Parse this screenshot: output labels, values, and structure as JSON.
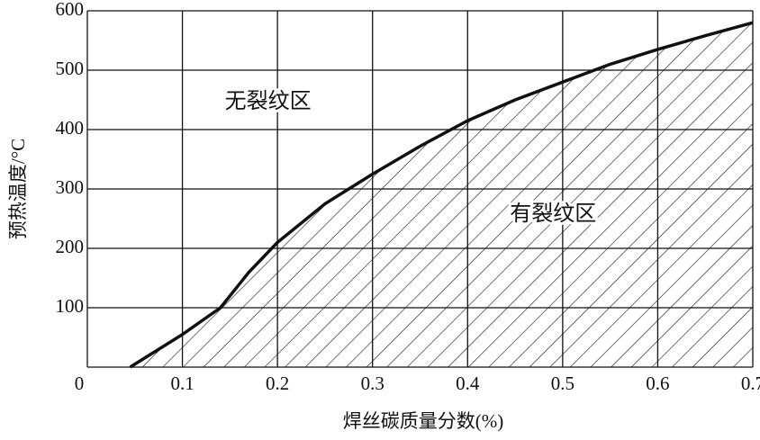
{
  "chart_data": {
    "type": "area",
    "x_label": "焊丝碳质量分数(%)",
    "y_label": "预热温度/°C",
    "x": [
      0.045,
      0.1,
      0.14,
      0.17,
      0.2,
      0.25,
      0.3,
      0.35,
      0.4,
      0.45,
      0.5,
      0.55,
      0.6,
      0.65,
      0.7
    ],
    "values": [
      0,
      55,
      100,
      160,
      210,
      275,
      325,
      372,
      415,
      450,
      480,
      510,
      535,
      558,
      580
    ],
    "color": "#111111",
    "xlim": [
      0,
      0.7
    ],
    "ylim": [
      0,
      600
    ],
    "xticks": [
      0,
      0.1,
      0.2,
      0.3,
      0.4,
      0.5,
      0.6,
      0.7
    ],
    "yticks": [
      100,
      200,
      300,
      400,
      500,
      600
    ],
    "grid": true,
    "annotations": [
      {
        "text": "无裂纹区",
        "x": 0.19,
        "y": 445
      },
      {
        "text": "有裂纹区",
        "x": 0.49,
        "y": 255
      }
    ]
  }
}
